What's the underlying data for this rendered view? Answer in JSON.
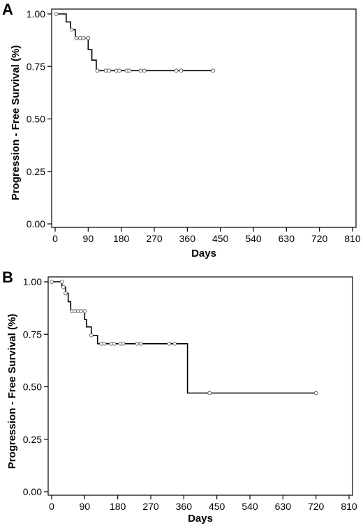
{
  "chart_data": [
    {
      "type": "line",
      "panel_label": "A",
      "xlabel": "Days",
      "ylabel": "Progression - Free Survival (%)",
      "xlim": [
        0,
        810
      ],
      "ylim": [
        0,
        1
      ],
      "x_ticks": [
        0,
        90,
        180,
        270,
        360,
        450,
        540,
        630,
        720,
        810
      ],
      "x_tick_labels": [
        "0",
        "90",
        "180",
        "270",
        "360",
        "450",
        "540",
        "630",
        "720",
        "810"
      ],
      "y_ticks": [
        0,
        0.25,
        0.5,
        0.75,
        1.0
      ],
      "y_tick_labels": [
        "0.00",
        "0.25",
        "0.50",
        "0.75",
        "1.00"
      ],
      "grid": false,
      "series": [
        {
          "curve": [
            [
              0,
              1.0
            ],
            [
              30,
              1.0
            ],
            [
              30,
              0.962
            ],
            [
              42,
              0.962
            ],
            [
              42,
              0.925
            ],
            [
              55,
              0.925
            ],
            [
              55,
              0.885
            ],
            [
              90,
              0.885
            ],
            [
              90,
              0.83
            ],
            [
              100,
              0.83
            ],
            [
              100,
              0.78
            ],
            [
              112,
              0.78
            ],
            [
              112,
              0.73
            ],
            [
              430,
              0.73
            ]
          ],
          "censored": [
            [
              3,
              1.0
            ],
            [
              45,
              0.925
            ],
            [
              58,
              0.885
            ],
            [
              68,
              0.885
            ],
            [
              77,
              0.885
            ],
            [
              90,
              0.885
            ],
            [
              115,
              0.73
            ],
            [
              138,
              0.73
            ],
            [
              147,
              0.73
            ],
            [
              167,
              0.73
            ],
            [
              175,
              0.73
            ],
            [
              195,
              0.73
            ],
            [
              202,
              0.73
            ],
            [
              233,
              0.73
            ],
            [
              243,
              0.73
            ],
            [
              330,
              0.73
            ],
            [
              343,
              0.73
            ],
            [
              430,
              0.73
            ]
          ]
        }
      ]
    },
    {
      "type": "line",
      "panel_label": "B",
      "xlabel": "Days",
      "ylabel": "Progression - Free Survival (%)",
      "xlim": [
        0,
        810
      ],
      "ylim": [
        0,
        1
      ],
      "x_ticks": [
        0,
        90,
        180,
        270,
        360,
        450,
        540,
        630,
        720,
        810
      ],
      "x_tick_labels": [
        "0",
        "90",
        "180",
        "270",
        "360",
        "450",
        "540",
        "630",
        "720",
        "810"
      ],
      "y_ticks": [
        0,
        0.25,
        0.5,
        0.75,
        1.0
      ],
      "y_tick_labels": [
        "0.00",
        "0.25",
        "0.50",
        "0.75",
        "1.00"
      ],
      "grid": false,
      "series": [
        {
          "curve": [
            [
              0,
              1.0
            ],
            [
              28,
              1.0
            ],
            [
              28,
              0.975
            ],
            [
              38,
              0.975
            ],
            [
              38,
              0.945
            ],
            [
              45,
              0.945
            ],
            [
              45,
              0.905
            ],
            [
              52,
              0.905
            ],
            [
              52,
              0.86
            ],
            [
              90,
              0.86
            ],
            [
              90,
              0.82
            ],
            [
              95,
              0.82
            ],
            [
              95,
              0.785
            ],
            [
              108,
              0.785
            ],
            [
              108,
              0.745
            ],
            [
              125,
              0.745
            ],
            [
              125,
              0.705
            ],
            [
              370,
              0.705
            ],
            [
              370,
              0.47
            ],
            [
              720,
              0.47
            ]
          ],
          "censored": [
            [
              0,
              1.0
            ],
            [
              28,
              1.0
            ],
            [
              32,
              0.975
            ],
            [
              38,
              0.945
            ],
            [
              55,
              0.86
            ],
            [
              63,
              0.86
            ],
            [
              72,
              0.86
            ],
            [
              80,
              0.86
            ],
            [
              90,
              0.86
            ],
            [
              108,
              0.745
            ],
            [
              135,
              0.705
            ],
            [
              143,
              0.705
            ],
            [
              162,
              0.705
            ],
            [
              170,
              0.705
            ],
            [
              187,
              0.705
            ],
            [
              195,
              0.705
            ],
            [
              233,
              0.705
            ],
            [
              243,
              0.705
            ],
            [
              320,
              0.705
            ],
            [
              335,
              0.705
            ],
            [
              430,
              0.47
            ],
            [
              720,
              0.47
            ]
          ]
        }
      ]
    }
  ]
}
